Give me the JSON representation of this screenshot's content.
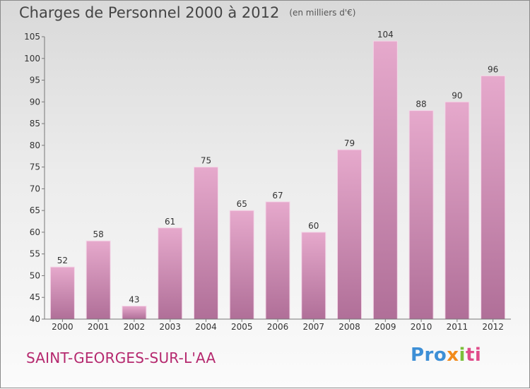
{
  "header": {
    "title": "Charges de Personnel 2000 à 2012",
    "subtitle": "(en milliers d'€)"
  },
  "footer": {
    "location": "SAINT-GEORGES-SUR-L'AA",
    "logo": "Proxiti"
  },
  "colors": {
    "bar_top": "#e6a9cc",
    "bar_bottom": "#b06f98",
    "location_text": "#b5286e"
  },
  "chart_data": {
    "type": "bar",
    "categories": [
      "2000",
      "2001",
      "2002",
      "2003",
      "2004",
      "2005",
      "2006",
      "2007",
      "2008",
      "2009",
      "2010",
      "2011",
      "2012"
    ],
    "values": [
      52,
      58,
      43,
      61,
      75,
      65,
      67,
      60,
      79,
      104,
      88,
      90,
      96
    ],
    "title": "Charges de Personnel 2000 à 2012",
    "subtitle": "(en milliers d'€)",
    "xlabel": "",
    "ylabel": "",
    "ylim": [
      40,
      105
    ],
    "yticks": [
      40,
      45,
      50,
      55,
      60,
      65,
      70,
      75,
      80,
      85,
      90,
      95,
      100,
      105
    ],
    "grid": false,
    "data_labels": true
  }
}
